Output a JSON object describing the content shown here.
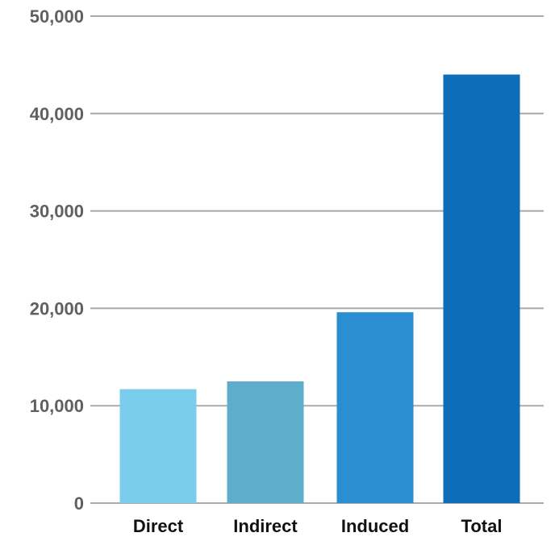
{
  "chart_data": {
    "type": "bar",
    "categories": [
      "Direct",
      "Indirect",
      "Induced",
      "Total"
    ],
    "values": [
      11700,
      12500,
      19600,
      44000
    ],
    "colors": [
      "#79cceb",
      "#5eadcb",
      "#2a8ed0",
      "#0d6db8"
    ],
    "ylim": [
      0,
      50000
    ],
    "yticks": [
      0,
      10000,
      20000,
      30000,
      40000,
      50000
    ],
    "ytick_labels": [
      "0",
      "10,000",
      "20,000",
      "30,000",
      "40,000",
      "50,000"
    ],
    "grid": true,
    "title": "",
    "xlabel": "",
    "ylabel": ""
  }
}
